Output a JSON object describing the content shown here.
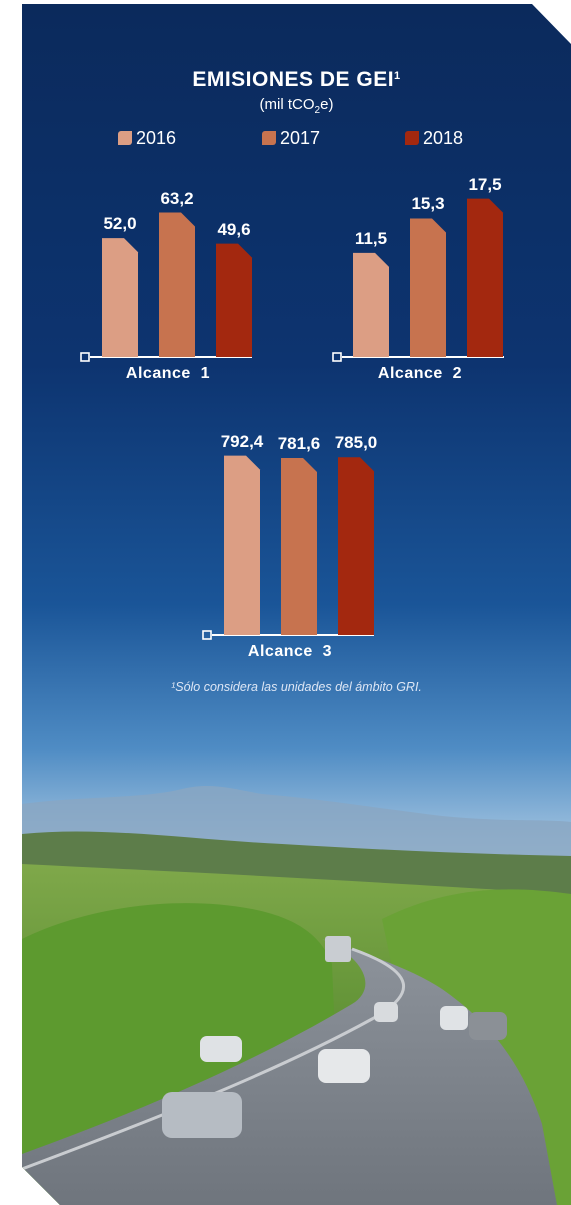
{
  "colors": {
    "s2016": "#dc9e84",
    "s2017": "#c7734f",
    "s2018": "#a3280f",
    "background": "#0b2f63",
    "text": "#ffffff"
  },
  "header": {
    "title": "EMISIONES DE GEI",
    "title_sup": "1",
    "unit_prefix": "(mil tCO",
    "unit_sub": "2",
    "unit_suffix": "e)"
  },
  "footnote": "¹Sólo considera las unidades del ámbito GRI.",
  "chart_data": [
    {
      "type": "bar",
      "categories": [
        "2016",
        "2017",
        "2018"
      ],
      "series": [
        {
          "name": "Alcance  1",
          "values": [
            52.0,
            63.2,
            49.6
          ]
        }
      ],
      "value_labels": [
        "52,0",
        "63,2",
        "49,6"
      ],
      "xlabel": "Alcance  1",
      "legend": [
        "2016",
        "2017",
        "2018"
      ],
      "legend_position": "top-center",
      "grid": false
    },
    {
      "type": "bar",
      "categories": [
        "2016",
        "2017",
        "2018"
      ],
      "series": [
        {
          "name": "Alcance  2",
          "values": [
            11.5,
            15.3,
            17.5
          ]
        }
      ],
      "value_labels": [
        "11,5",
        "15,3",
        "17,5"
      ],
      "xlabel": "Alcance  2",
      "grid": false
    },
    {
      "type": "bar",
      "categories": [
        "2016",
        "2017",
        "2018"
      ],
      "series": [
        {
          "name": "Alcance  3",
          "values": [
            792.4,
            781.6,
            785.0
          ]
        }
      ],
      "value_labels": [
        "792,4",
        "781,6",
        "785,0"
      ],
      "xlabel": "Alcance  3",
      "grid": false
    }
  ]
}
